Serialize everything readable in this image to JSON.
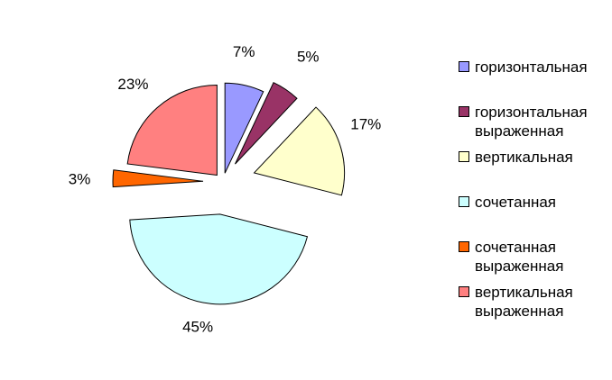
{
  "chart_data": {
    "type": "pie",
    "exploded": true,
    "title": "",
    "slices": [
      {
        "name": "горизонтальная",
        "value": 7,
        "label": "7%",
        "color": "#9999FF"
      },
      {
        "name": "горизонтальная\nвыраженная",
        "value": 5,
        "label": "5%",
        "color": "#993366"
      },
      {
        "name": "вертикальная",
        "value": 17,
        "label": "17%",
        "color": "#FFFFCC"
      },
      {
        "name": "сочетанная",
        "value": 45,
        "label": "45%",
        "color": "#CCFFFF"
      },
      {
        "name": "сочетанная\nвыраженная",
        "value": 3,
        "label": "3%",
        "color": "#FF6600"
      },
      {
        "name": "вертикальная\nвыраженная",
        "value": 23,
        "label": "23%",
        "color": "#FF8080"
      }
    ],
    "legend_position": "right"
  }
}
